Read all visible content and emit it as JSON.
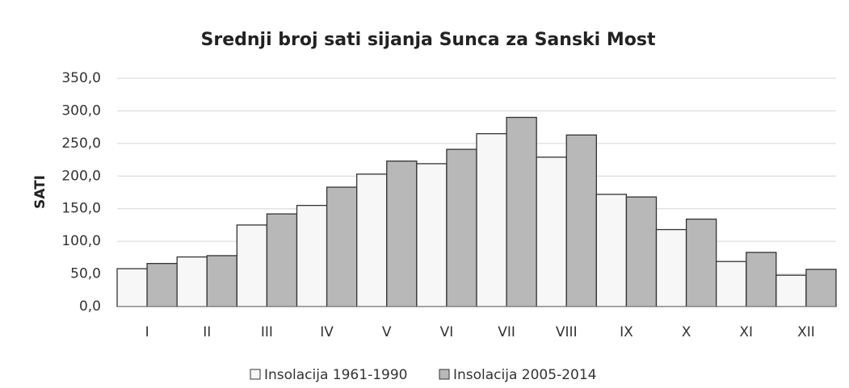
{
  "chart_data": {
    "type": "bar",
    "title": "Srednji broj sati sijanja Sunca za Sanski Most",
    "y_label": "SATI",
    "categories": [
      "I",
      "II",
      "III",
      "IV",
      "V",
      "VI",
      "VII",
      "VIII",
      "IX",
      "X",
      "XI",
      "XII"
    ],
    "series": [
      {
        "name": "Insolacija 1961-1990",
        "color": "#f7f7f7",
        "values": [
          58,
          76,
          125,
          155,
          203,
          219,
          265,
          229,
          172,
          118,
          69,
          48
        ]
      },
      {
        "name": "Insolacija 2005-2014",
        "color": "#b8b8b8",
        "values": [
          66,
          78,
          142,
          183,
          223,
          241,
          290,
          263,
          168,
          134,
          83,
          57
        ]
      }
    ],
    "ylim": [
      0,
      350
    ],
    "yticks": [
      {
        "value": 0,
        "label": "0,0"
      },
      {
        "value": 50,
        "label": "50,0"
      },
      {
        "value": 100,
        "label": "100,0"
      },
      {
        "value": 150,
        "label": "150,0"
      },
      {
        "value": 200,
        "label": "200,0"
      },
      {
        "value": 250,
        "label": "250,0"
      },
      {
        "value": 300,
        "label": "300,0"
      },
      {
        "value": 350,
        "label": "350,0"
      }
    ],
    "grid": true
  }
}
